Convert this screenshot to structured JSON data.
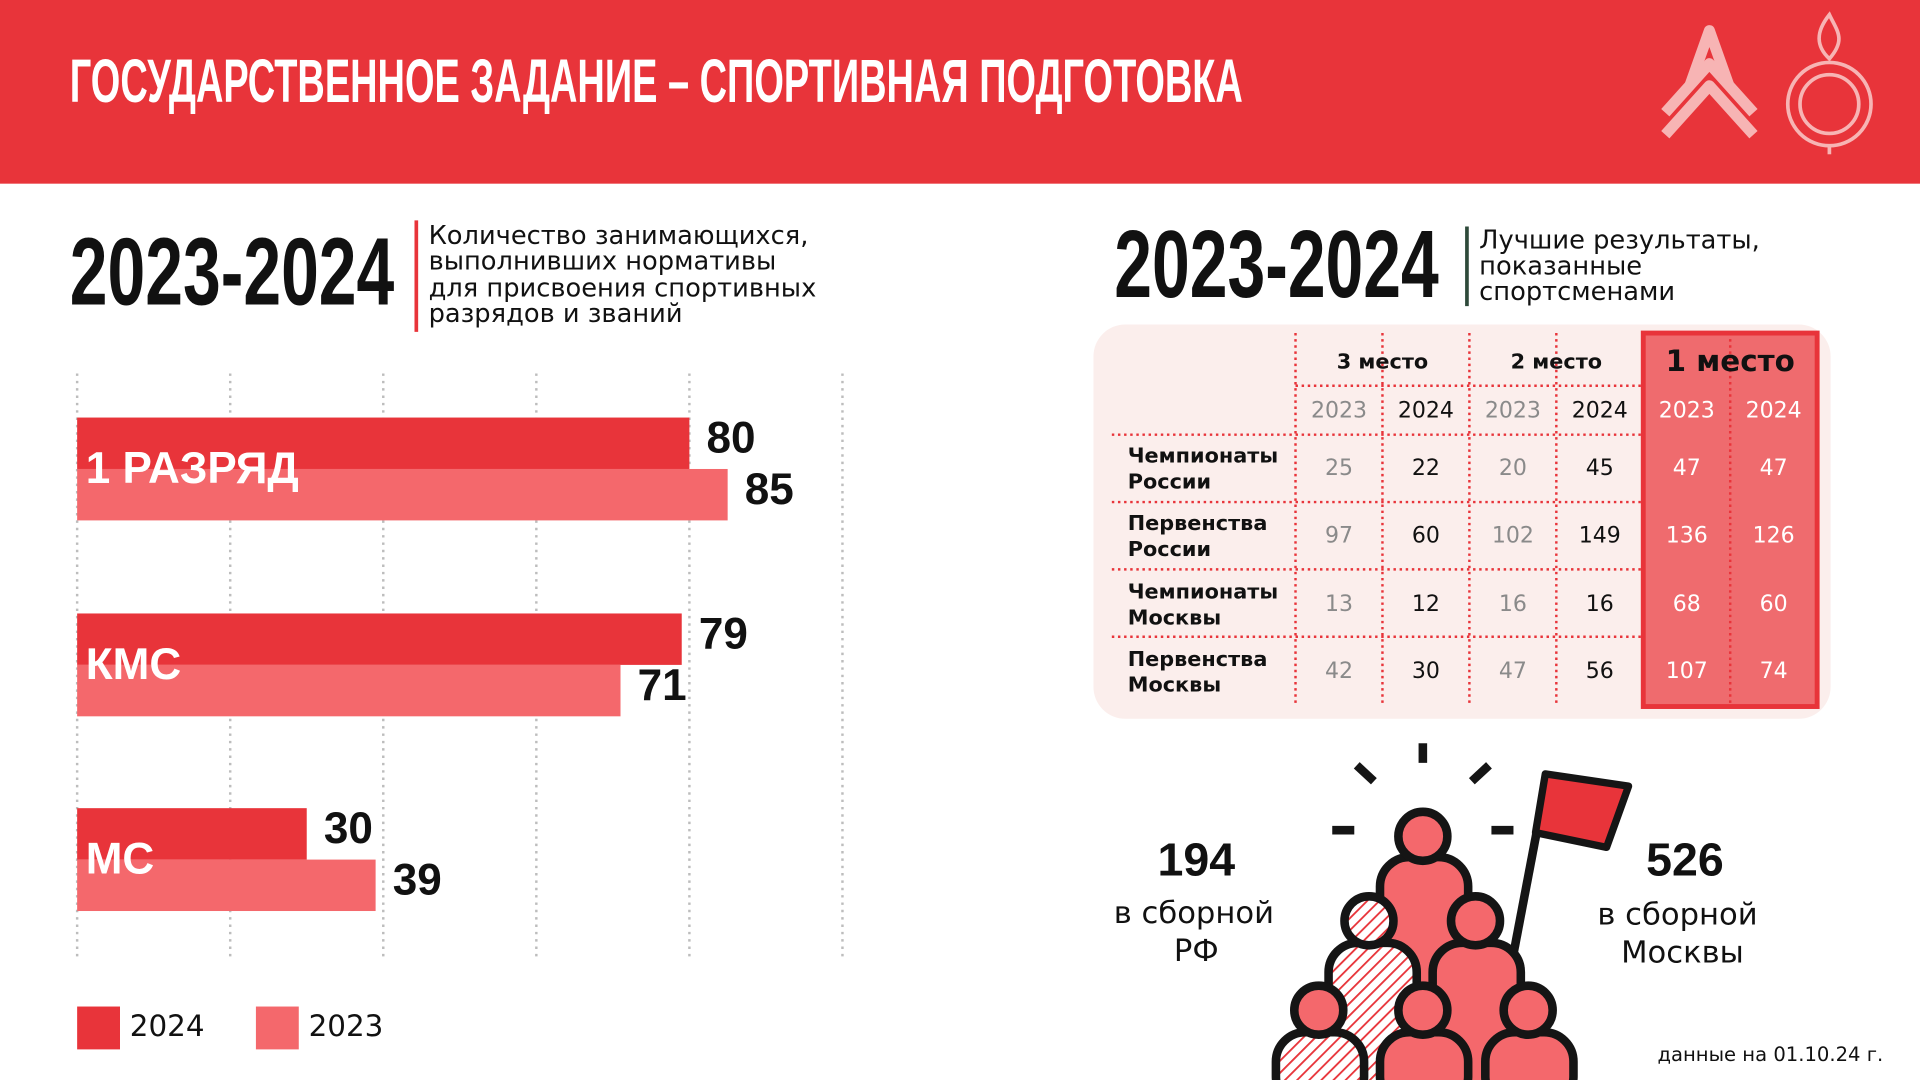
{
  "header": {
    "title": "ГОСУДАРСТВЕННОЕ ЗАДАНИЕ – СПОРТИВНАЯ ПОДГОТОВКА"
  },
  "chart_data": {
    "type": "bar",
    "title": "2023-2024",
    "subtitle": [
      "Количество занимающихся,",
      "выполнивших нормативы",
      "для присвоения спортивных",
      "разрядов и званий"
    ],
    "categories": [
      "1 РАЗРЯД",
      "КМС",
      "МС"
    ],
    "series": [
      {
        "name": "2024",
        "color": "#e8343a",
        "values": [
          80,
          79,
          30
        ]
      },
      {
        "name": "2023",
        "color": "#f4686c",
        "values": [
          85,
          71,
          39
        ]
      }
    ],
    "xlim": [
      0,
      100
    ],
    "xticks": [
      0,
      20,
      40,
      60,
      80,
      100
    ],
    "grid": true
  },
  "results": {
    "period": "2023-2024",
    "caption": [
      "Лучшие результаты,",
      "показанные",
      "спортсменами"
    ],
    "table": {
      "groups": [
        {
          "name": "3 место",
          "years": [
            "2023",
            "2024"
          ]
        },
        {
          "name": "2 место",
          "years": [
            "2023",
            "2024"
          ]
        },
        {
          "name": "1 место",
          "years": [
            "2023",
            "2024"
          ]
        }
      ],
      "rows": [
        {
          "label": [
            "Чемпионаты",
            "России"
          ],
          "values": [
            25,
            22,
            20,
            45,
            47,
            47
          ]
        },
        {
          "label": [
            "Первенства",
            "России"
          ],
          "values": [
            97,
            60,
            102,
            149,
            136,
            126
          ]
        },
        {
          "label": [
            "Чемпионаты",
            "Москвы"
          ],
          "values": [
            13,
            12,
            16,
            16,
            68,
            60
          ]
        },
        {
          "label": [
            "Первенства",
            "Москвы"
          ],
          "values": [
            42,
            30,
            47,
            56,
            107,
            74
          ]
        }
      ]
    }
  },
  "stats": [
    {
      "value": 194,
      "lines": [
        "в сборной",
        "РФ"
      ]
    },
    {
      "value": 526,
      "lines": [
        "в сборной",
        "Москвы"
      ]
    }
  ],
  "footnote": "данные на 01.10.24 г."
}
